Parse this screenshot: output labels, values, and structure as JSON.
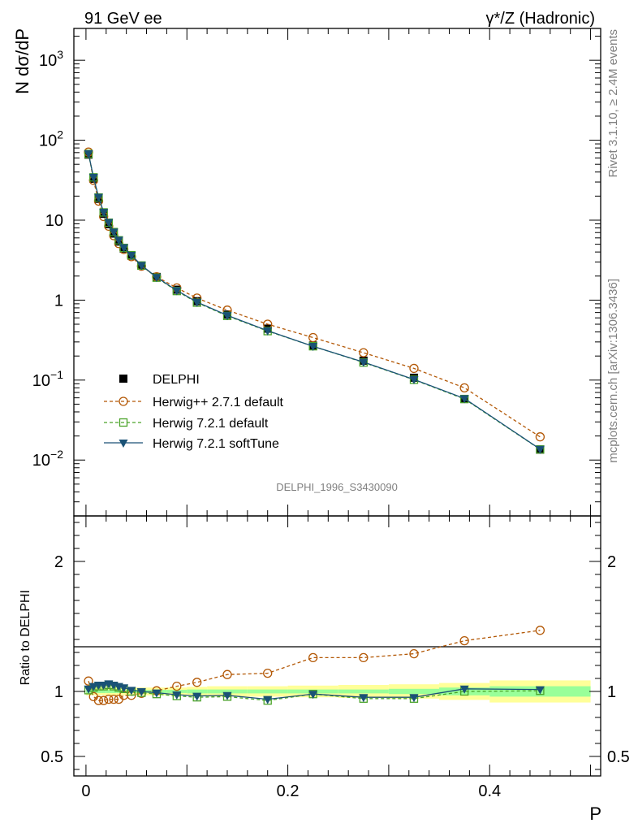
{
  "header": {
    "left": "91 GeV ee",
    "right": "γ*/Z (Hadronic)"
  },
  "side_labels": {
    "rivet": "Rivet 3.1.10, ≥ 2.4M events",
    "mcplots": "mcplots.cern.ch [arXiv:1306.3436]"
  },
  "analysis_id": "DELPHI_1996_S3430090",
  "chart_data": [
    {
      "type": "line",
      "panel": "main",
      "ylabel": "N dσ/dP",
      "xlabel": "P",
      "yscale": "log",
      "xlim": [
        -0.012,
        0.51
      ],
      "ylim": [
        0.002,
        2500
      ],
      "y_tick_labels": [
        "10^-2",
        "10^-1",
        "1",
        "10",
        "10^2",
        "10^3"
      ],
      "x_tick_labels": [
        "0",
        "0.2",
        "0.4"
      ],
      "legend_position": "lower-left",
      "x": [
        0.0025,
        0.0075,
        0.0125,
        0.0175,
        0.0225,
        0.0275,
        0.0325,
        0.0375,
        0.045,
        0.055,
        0.07,
        0.09,
        0.11,
        0.14,
        0.18,
        0.225,
        0.275,
        0.325,
        0.375,
        0.45
      ],
      "series": [
        {
          "name": "DELPHI",
          "color": "#000000",
          "marker": "square-filled",
          "values": [
            66,
            33,
            18.5,
            12,
            8.9,
            6.8,
            5.4,
            4.4,
            3.6,
            2.7,
            1.95,
            1.35,
            0.97,
            0.66,
            0.44,
            0.27,
            0.175,
            0.107,
            0.058,
            0.0135
          ]
        },
        {
          "name": "Herwig++ 2.7.1 default",
          "color": "#b35806",
          "marker": "circle-open",
          "dash": "dashed",
          "values": [
            71,
            31.5,
            17.3,
            11.1,
            8.4,
            6.4,
            5.1,
            4.3,
            3.5,
            2.66,
            1.96,
            1.42,
            1.06,
            0.75,
            0.5,
            0.34,
            0.22,
            0.14,
            0.08,
            0.0195
          ]
        },
        {
          "name": "Herwig 7.2.1 default",
          "color": "#4aa329",
          "marker": "square-open",
          "dash": "dashed",
          "values": [
            67.3,
            34.3,
            19.2,
            12.5,
            9.3,
            7.1,
            5.6,
            4.5,
            3.65,
            2.71,
            1.91,
            1.3,
            0.93,
            0.635,
            0.41,
            0.265,
            0.166,
            0.101,
            0.058,
            0.0136
          ]
        },
        {
          "name": "Herwig 7.2.1 softTune",
          "color": "#1a5276",
          "marker": "triangle-down-filled",
          "dash": "solid",
          "values": [
            68,
            34.5,
            19.4,
            12.6,
            9.4,
            7.15,
            5.65,
            4.55,
            3.66,
            2.73,
            1.93,
            1.32,
            0.945,
            0.645,
            0.415,
            0.265,
            0.168,
            0.102,
            0.059,
            0.0137
          ]
        }
      ]
    },
    {
      "type": "line",
      "panel": "ratio",
      "ylabel": "Ratio to DELPHI",
      "xlabel": "P",
      "ylim": [
        0.35,
        2.35
      ],
      "y_tick_labels": [
        "0.5",
        "1",
        "2"
      ],
      "x_tick_labels": [
        "0",
        "0.2",
        "0.4"
      ],
      "x": [
        0.0025,
        0.0075,
        0.0125,
        0.0175,
        0.0225,
        0.0275,
        0.0325,
        0.0375,
        0.045,
        0.055,
        0.07,
        0.09,
        0.11,
        0.14,
        0.18,
        0.225,
        0.275,
        0.325,
        0.375,
        0.45
      ],
      "bands": {
        "bin_edges": [
          0,
          0.005,
          0.01,
          0.015,
          0.02,
          0.025,
          0.03,
          0.035,
          0.04,
          0.05,
          0.06,
          0.08,
          0.1,
          0.12,
          0.16,
          0.2,
          0.25,
          0.3,
          0.35,
          0.4,
          0.5
        ],
        "stat_halfwidth": [
          0.012,
          0.012,
          0.012,
          0.012,
          0.012,
          0.012,
          0.012,
          0.012,
          0.012,
          0.012,
          0.012,
          0.012,
          0.015,
          0.015,
          0.015,
          0.015,
          0.015,
          0.02,
          0.03,
          0.04
        ],
        "total_halfwidth": [
          0.03,
          0.03,
          0.03,
          0.03,
          0.03,
          0.03,
          0.03,
          0.03,
          0.03,
          0.03,
          0.03,
          0.03,
          0.035,
          0.04,
          0.04,
          0.045,
          0.05,
          0.055,
          0.065,
          0.085
        ],
        "stat_color": "#99ff99",
        "total_color": "#ffff99"
      },
      "series": [
        {
          "name": "Herwig++ 2.7.1 default",
          "color": "#b35806",
          "marker": "circle-open",
          "dash": "dashed",
          "values": [
            1.08,
            0.96,
            0.93,
            0.93,
            0.94,
            0.94,
            0.94,
            0.97,
            0.97,
            0.985,
            1.005,
            1.04,
            1.07,
            1.13,
            1.14,
            1.26,
            1.26,
            1.29,
            1.39,
            1.47
          ]
        },
        {
          "name": "Herwig 7.2.1 default",
          "color": "#4aa329",
          "marker": "square-open",
          "dash": "dashed",
          "values": [
            1.01,
            1.03,
            1.04,
            1.04,
            1.05,
            1.04,
            1.03,
            1.02,
            1.0,
            0.99,
            0.98,
            0.965,
            0.955,
            0.96,
            0.93,
            0.98,
            0.945,
            0.945,
            1.0,
            1.005
          ]
        },
        {
          "name": "Herwig 7.2.1 softTune",
          "color": "#1a5276",
          "marker": "triangle-down-filled",
          "dash": "solid",
          "values": [
            1.02,
            1.04,
            1.05,
            1.05,
            1.06,
            1.05,
            1.04,
            1.03,
            1.01,
            1.0,
            0.99,
            0.975,
            0.965,
            0.97,
            0.94,
            0.98,
            0.955,
            0.955,
            1.02,
            1.015
          ]
        }
      ]
    }
  ]
}
